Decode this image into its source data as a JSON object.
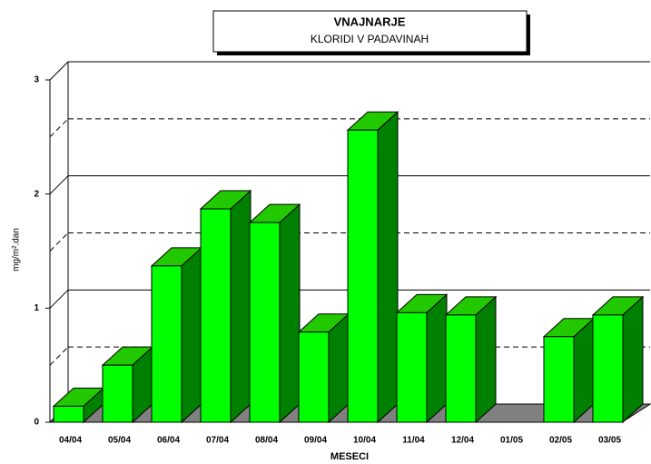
{
  "chart_data": {
    "type": "bar3d",
    "title": "VNAJNARJE",
    "subtitle": "KLORIDI V PADAVINAH",
    "x_label": "MESECI",
    "y_label": "mg/m².dan",
    "categories": [
      "04/04",
      "05/04",
      "06/04",
      "07/04",
      "08/04",
      "09/04",
      "10/04",
      "11/04",
      "12/04",
      "01/05",
      "02/05",
      "03/05"
    ],
    "values": [
      0.14,
      0.5,
      1.37,
      1.87,
      1.75,
      0.79,
      2.56,
      0.96,
      0.94,
      null,
      0.75,
      0.94
    ],
    "color": "#00ff00",
    "ylim": [
      0,
      3
    ],
    "yticks": [
      0,
      1,
      2,
      3
    ],
    "minor_yticks": [
      0.5,
      1.5,
      2.5
    ],
    "grid": true
  }
}
